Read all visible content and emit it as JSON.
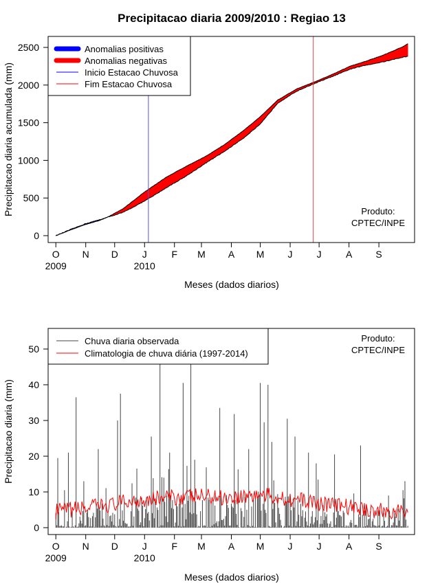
{
  "chart_data": [
    {
      "type": "area",
      "title": "Precipitacao diaria 2009/2010 : Regiao 13",
      "xlabel": "Meses (dados diarios)",
      "ylabel": "Precipitacao diaria acumulada (mm)",
      "ylim": [
        0,
        2600
      ],
      "yticks": [
        0,
        500,
        1000,
        1500,
        2000,
        2500
      ],
      "xlim_days": [
        -8,
        372
      ],
      "months": [
        {
          "label": "O",
          "day": 0
        },
        {
          "label": "N",
          "day": 31
        },
        {
          "label": "D",
          "day": 61
        },
        {
          "label": "J",
          "day": 92
        },
        {
          "label": "F",
          "day": 123
        },
        {
          "label": "M",
          "day": 151
        },
        {
          "label": "A",
          "day": 182
        },
        {
          "label": "M",
          "day": 212
        },
        {
          "label": "J",
          "day": 243
        },
        {
          "label": "J",
          "day": 273
        },
        {
          "label": "A",
          "day": 304
        },
        {
          "label": "S",
          "day": 335
        }
      ],
      "year_labels": [
        {
          "label": "2009",
          "day": 0
        },
        {
          "label": "2010",
          "day": 92
        }
      ],
      "observed_cumulative": {
        "days": [
          0,
          15,
          31,
          45,
          55,
          70,
          92,
          100,
          115,
          135,
          155,
          175,
          195,
          212,
          230,
          250,
          270,
          290,
          305,
          320,
          340,
          360,
          365
        ],
        "values": [
          0,
          80,
          160,
          210,
          250,
          310,
          460,
          520,
          640,
          790,
          960,
          1120,
          1300,
          1480,
          1760,
          1920,
          2030,
          2130,
          2210,
          2260,
          2310,
          2370,
          2380
        ]
      },
      "climatology_cumulative": {
        "days": [
          0,
          15,
          31,
          45,
          55,
          70,
          92,
          100,
          115,
          135,
          155,
          175,
          195,
          212,
          230,
          250,
          270,
          290,
          305,
          320,
          340,
          360,
          365
        ],
        "values": [
          0,
          75,
          150,
          200,
          255,
          360,
          580,
          650,
          780,
          920,
          1050,
          1210,
          1400,
          1580,
          1800,
          1950,
          2050,
          2160,
          2250,
          2310,
          2400,
          2510,
          2550
        ]
      },
      "start_rainy_season_day": 96,
      "end_rainy_season_day": 267,
      "legend": {
        "position": "top-left",
        "entries": [
          {
            "label": "Anomalias positivas",
            "color": "#0000ff",
            "style": "thick"
          },
          {
            "label": "Anomalias negativas",
            "color": "#ff0000",
            "style": "thick"
          },
          {
            "label": "Inicio Estacao Chuvosa",
            "color": "#0000ff",
            "style": "line"
          },
          {
            "label": "Fim Estacao Chuvosa",
            "color": "#ff0000",
            "style": "line"
          }
        ]
      },
      "annotation": [
        "Produto:",
        "CPTEC/INPE"
      ],
      "colors": {
        "positive": "#0000ff",
        "negative": "#ff0000",
        "start_line": "#5555dd",
        "end_line": "#dd4444"
      }
    },
    {
      "type": "bar",
      "xlabel": "Meses (dados diarios)",
      "ylabel": "Precipitacao diaria (mm)",
      "ylim": [
        0,
        55
      ],
      "yticks": [
        0,
        10,
        20,
        30,
        40,
        50
      ],
      "xlim_days": [
        -8,
        372
      ],
      "months": [
        {
          "label": "O",
          "day": 0
        },
        {
          "label": "N",
          "day": 31
        },
        {
          "label": "D",
          "day": 61
        },
        {
          "label": "J",
          "day": 92
        },
        {
          "label": "F",
          "day": 123
        },
        {
          "label": "M",
          "day": 151
        },
        {
          "label": "A",
          "day": 182
        },
        {
          "label": "M",
          "day": 212
        },
        {
          "label": "J",
          "day": 243
        },
        {
          "label": "J",
          "day": 273
        },
        {
          "label": "A",
          "day": 304
        },
        {
          "label": "S",
          "day": 335
        }
      ],
      "year_labels": [
        {
          "label": "2009",
          "day": 0
        },
        {
          "label": "2010",
          "day": 92
        }
      ],
      "daily_peaks": [
        {
          "day": 2,
          "value": 19.5
        },
        {
          "day": 9,
          "value": 10.5
        },
        {
          "day": 13,
          "value": 21
        },
        {
          "day": 21,
          "value": 36.5
        },
        {
          "day": 29,
          "value": 13
        },
        {
          "day": 44,
          "value": 22
        },
        {
          "day": 67,
          "value": 37.5
        },
        {
          "day": 64,
          "value": 30
        },
        {
          "day": 99,
          "value": 25.5
        },
        {
          "day": 108,
          "value": 55
        },
        {
          "day": 112,
          "value": 14
        },
        {
          "day": 118,
          "value": 21
        },
        {
          "day": 132,
          "value": 40.5
        },
        {
          "day": 140,
          "value": 55
        },
        {
          "day": 144,
          "value": 19
        },
        {
          "day": 170,
          "value": 33.5
        },
        {
          "day": 185,
          "value": 31.8
        },
        {
          "day": 200,
          "value": 22
        },
        {
          "day": 212,
          "value": 40.5
        },
        {
          "day": 216,
          "value": 29.5
        },
        {
          "day": 220,
          "value": 40
        },
        {
          "day": 224,
          "value": 24
        },
        {
          "day": 240,
          "value": 30.5
        },
        {
          "day": 248,
          "value": 25.5
        },
        {
          "day": 262,
          "value": 21
        },
        {
          "day": 270,
          "value": 18
        },
        {
          "day": 289,
          "value": 20.5
        },
        {
          "day": 316,
          "value": 23
        },
        {
          "day": 345,
          "value": 9
        },
        {
          "day": 360,
          "value": 10.5
        },
        {
          "day": 362,
          "value": 13
        }
      ],
      "climatology_daily_approx": {
        "days": [
          0,
          30,
          60,
          90,
          120,
          150,
          180,
          210,
          240,
          270,
          300,
          330,
          365
        ],
        "values": [
          4.5,
          5.5,
          6.5,
          8,
          8.5,
          8.8,
          8.5,
          9.2,
          8.2,
          7,
          6,
          4.8,
          4.2
        ]
      },
      "legend": {
        "position": "top-left",
        "entries": [
          {
            "label": "Chuva diaria observada",
            "color": "#444444"
          },
          {
            "label": "Climatologia de chuva diária (1997-2014)",
            "color": "#ff0000"
          }
        ]
      },
      "annotation": [
        "Produto:",
        "CPTEC/INPE"
      ]
    }
  ]
}
